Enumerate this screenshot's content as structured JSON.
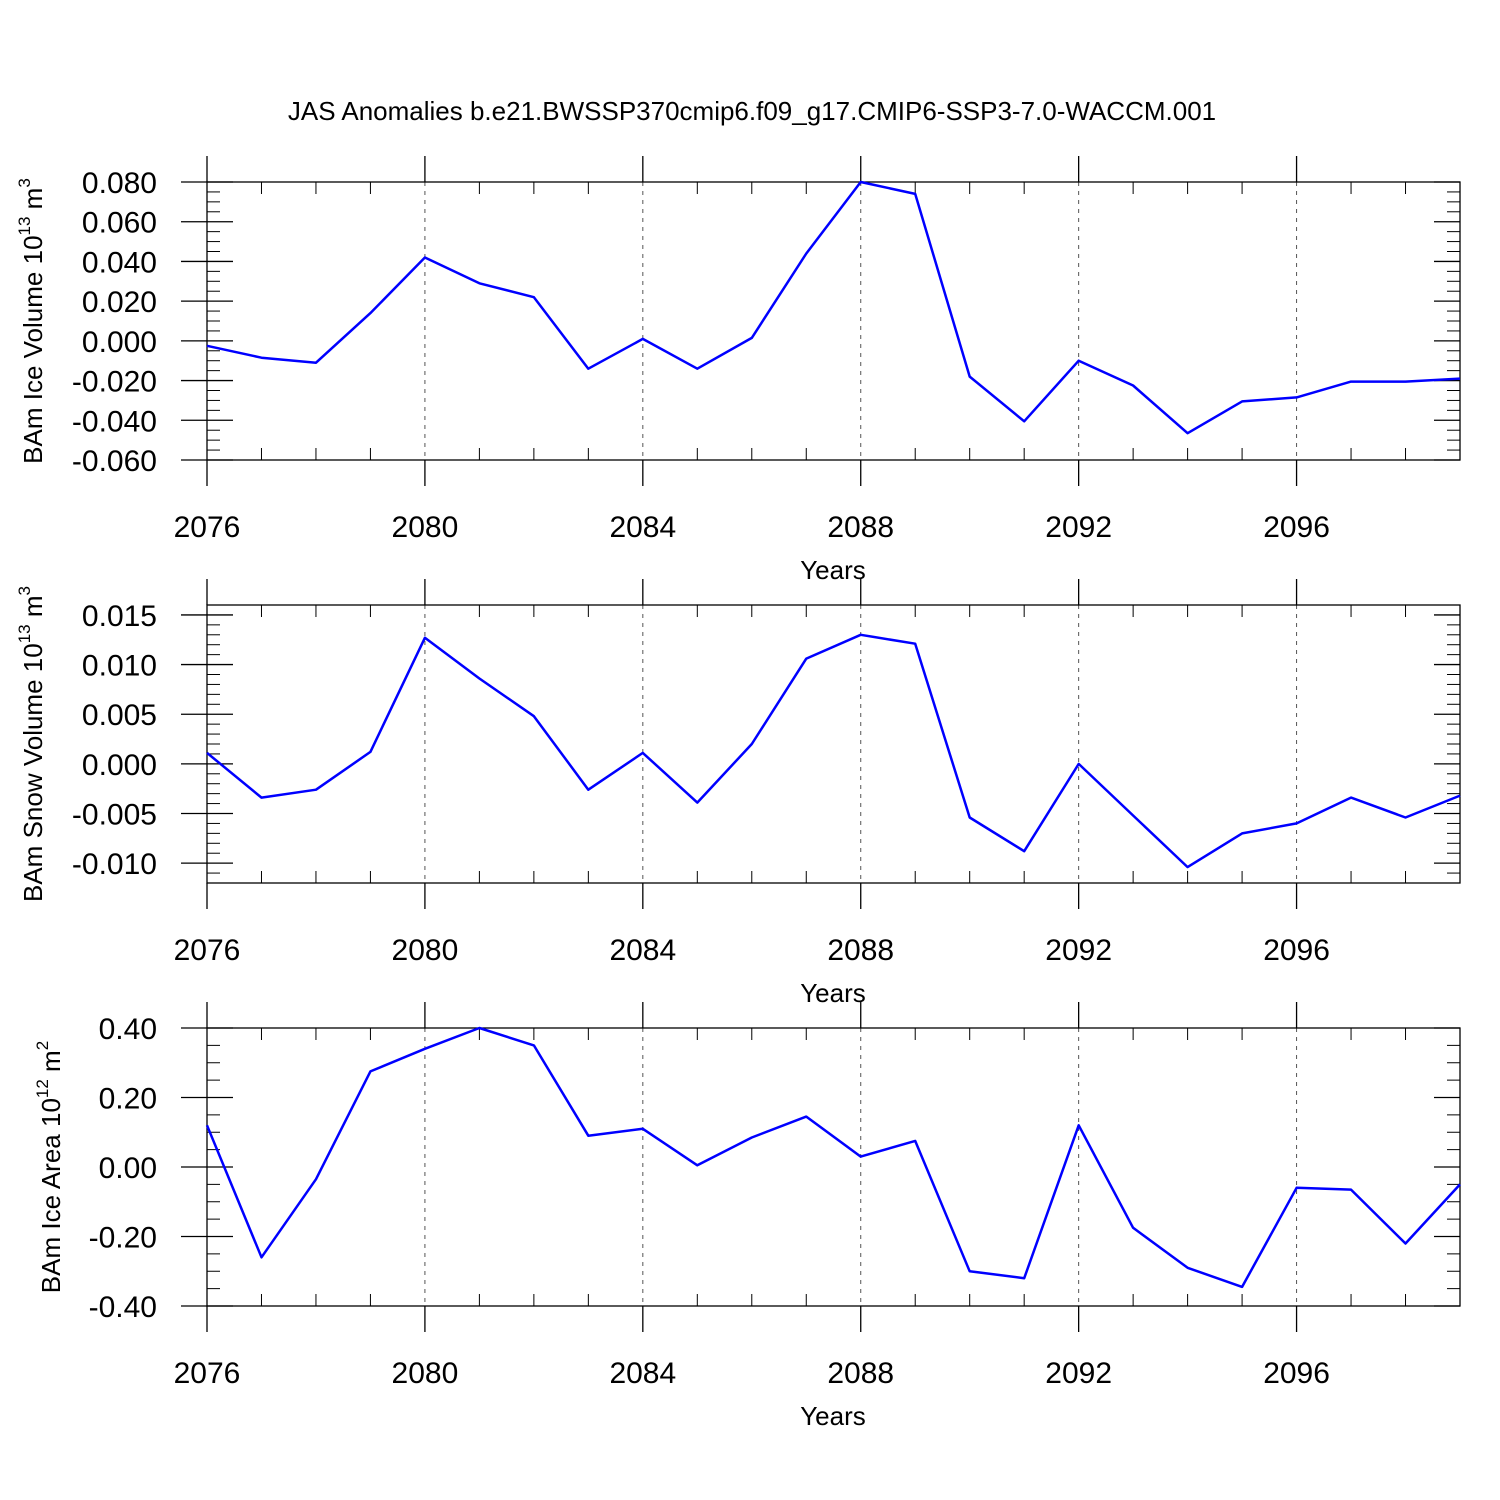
{
  "title": "JAS Anomalies b.e21.BWSSP370cmip6.f09_g17.CMIP6-SSP3-7.0-WACCM.001",
  "line_color": "#0000ff",
  "chart_data": [
    {
      "type": "line",
      "ylabel": "BAm Ice Volume",
      "ylabel_unit": "10",
      "ylabel_exp": "13",
      "ylabel_m": "m",
      "ylabel_m_exp": "3",
      "xlabel": "Years",
      "xlim": [
        2076,
        2099
      ],
      "ylim": [
        -0.06,
        0.08
      ],
      "x_ticks": [
        2076,
        2080,
        2084,
        2088,
        2092,
        2096
      ],
      "x_tick_labels": [
        "2076",
        "2080",
        "2084",
        "2088",
        "2092",
        "2096"
      ],
      "y_ticks": [
        0.08,
        0.06,
        0.04,
        0.02,
        0.0,
        -0.02,
        -0.04,
        -0.06
      ],
      "y_tick_labels": [
        "0.080",
        "0.060",
        "0.040",
        "0.020",
        "0.000",
        "-0.020",
        "-0.040",
        "-0.060"
      ],
      "y_minor_step": 0.005,
      "grid": "dashed vertical at major x ticks",
      "x": [
        2076,
        2077,
        2078,
        2079,
        2080,
        2081,
        2082,
        2083,
        2084,
        2085,
        2086,
        2087,
        2088,
        2089,
        2090,
        2091,
        2092,
        2093,
        2094,
        2095,
        2096,
        2097,
        2098,
        2099
      ],
      "values": [
        -0.0025,
        -0.0085,
        -0.011,
        0.014,
        0.042,
        0.029,
        0.022,
        -0.014,
        0.001,
        -0.014,
        0.0015,
        0.044,
        0.08,
        0.074,
        -0.018,
        -0.0405,
        -0.01,
        -0.0225,
        -0.0465,
        -0.0305,
        -0.0285,
        -0.0205,
        -0.0205,
        -0.019
      ]
    },
    {
      "type": "line",
      "ylabel": "BAm Snow Volume",
      "ylabel_unit": "10",
      "ylabel_exp": "13",
      "ylabel_m": "m",
      "ylabel_m_exp": "3",
      "xlabel": "Years",
      "xlim": [
        2076,
        2099
      ],
      "ylim": [
        -0.012,
        0.016
      ],
      "x_ticks": [
        2076,
        2080,
        2084,
        2088,
        2092,
        2096
      ],
      "x_tick_labels": [
        "2076",
        "2080",
        "2084",
        "2088",
        "2092",
        "2096"
      ],
      "y_ticks": [
        0.015,
        0.01,
        0.005,
        0.0,
        -0.005,
        -0.01
      ],
      "y_tick_labels": [
        "0.015",
        "0.010",
        "0.005",
        "0.000",
        "-0.005",
        "-0.010"
      ],
      "y_minor_step": 0.001,
      "grid": "dashed vertical at major x ticks",
      "x": [
        2076,
        2077,
        2078,
        2079,
        2080,
        2081,
        2082,
        2083,
        2084,
        2085,
        2086,
        2087,
        2088,
        2089,
        2090,
        2091,
        2092,
        2093,
        2094,
        2095,
        2096,
        2097,
        2098,
        2099
      ],
      "values": [
        0.0011,
        -0.0034,
        -0.0026,
        0.0012,
        0.0127,
        0.0086,
        0.0048,
        -0.0026,
        0.0011,
        -0.0039,
        0.002,
        0.0106,
        0.013,
        0.0121,
        -0.0054,
        -0.0088,
        0.0,
        -0.0052,
        -0.0104,
        -0.007,
        -0.006,
        -0.0034,
        -0.0054,
        -0.0032
      ]
    },
    {
      "type": "line",
      "ylabel": "BAm Ice Area",
      "ylabel_unit": "10",
      "ylabel_exp": "12",
      "ylabel_m": "m",
      "ylabel_m_exp": "2",
      "xlabel": "Years",
      "xlim": [
        2076,
        2099
      ],
      "ylim": [
        -0.4,
        0.4
      ],
      "x_ticks": [
        2076,
        2080,
        2084,
        2088,
        2092,
        2096
      ],
      "x_tick_labels": [
        "2076",
        "2080",
        "2084",
        "2088",
        "2092",
        "2096"
      ],
      "y_ticks": [
        0.4,
        0.2,
        0.0,
        -0.2,
        -0.4
      ],
      "y_tick_labels": [
        "0.40",
        "0.20",
        "0.00",
        "-0.20",
        "-0.40"
      ],
      "y_minor_step": 0.05,
      "grid": "dashed vertical at major x ticks",
      "x": [
        2076,
        2077,
        2078,
        2079,
        2080,
        2081,
        2082,
        2083,
        2084,
        2085,
        2086,
        2087,
        2088,
        2089,
        2090,
        2091,
        2092,
        2093,
        2094,
        2095,
        2096,
        2097,
        2098,
        2099
      ],
      "values": [
        0.12,
        -0.26,
        -0.035,
        0.275,
        0.34,
        0.4,
        0.35,
        0.09,
        0.11,
        0.005,
        0.085,
        0.145,
        0.03,
        0.075,
        -0.3,
        -0.32,
        0.12,
        -0.175,
        -0.29,
        -0.345,
        -0.06,
        -0.065,
        -0.22,
        -0.05
      ]
    }
  ]
}
